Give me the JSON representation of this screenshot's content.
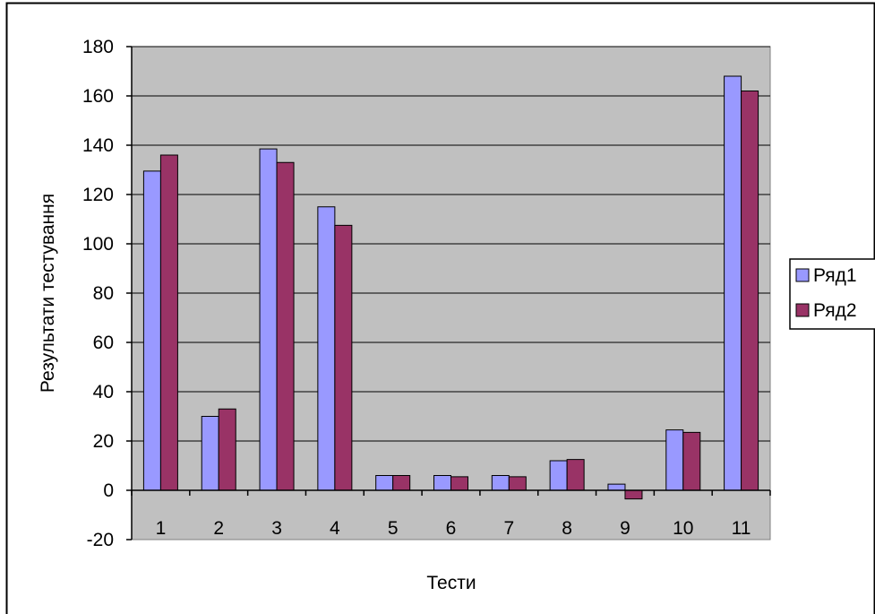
{
  "chart_data": {
    "type": "bar",
    "title": "",
    "xlabel": "Тести",
    "ylabel": "Результати тестування",
    "categories": [
      "1",
      "2",
      "3",
      "4",
      "5",
      "6",
      "7",
      "8",
      "9",
      "10",
      "11"
    ],
    "series": [
      {
        "name": "Ряд1",
        "color": "#9999ff",
        "values": [
          129.5,
          30,
          138.5,
          115,
          6,
          6,
          6,
          12,
          2.5,
          24.5,
          168
        ]
      },
      {
        "name": "Ряд2",
        "color": "#993366",
        "values": [
          136,
          33,
          133,
          107.5,
          6,
          5.5,
          5.5,
          12.5,
          -3.5,
          23.5,
          162
        ]
      }
    ],
    "ylim": [
      -20,
      180
    ],
    "yticks": [
      -20,
      0,
      20,
      40,
      60,
      80,
      100,
      120,
      140,
      160,
      180
    ],
    "ytick_labels": [
      "-20",
      "0",
      "20",
      "40",
      "60",
      "80",
      "100",
      "120",
      "140",
      "160",
      "180"
    ],
    "grid": true,
    "plot_background": "#c0c0c0",
    "legend_position": "right"
  }
}
